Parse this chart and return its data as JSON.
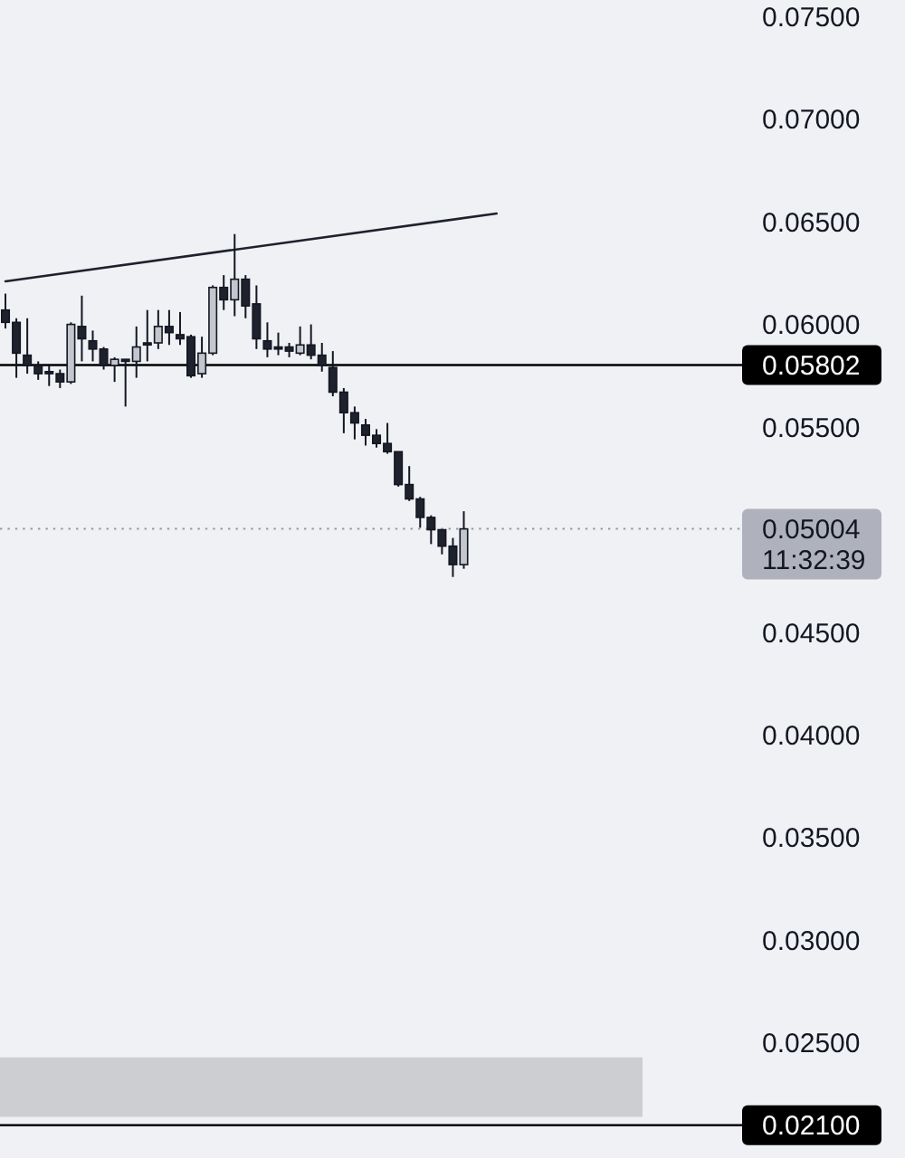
{
  "chart_data": {
    "type": "candlestick",
    "categories": [
      null,
      null,
      null,
      null,
      null,
      null,
      null,
      null,
      null,
      null,
      null,
      null,
      null,
      null,
      null,
      null,
      null,
      null,
      null,
      null,
      null,
      null,
      null,
      null,
      null,
      null,
      null,
      null,
      null,
      null,
      null,
      null,
      null,
      null,
      null,
      null,
      null,
      null,
      null,
      null,
      null,
      null,
      null,
      null,
      null,
      null,
      null,
      null,
      null,
      null,
      null,
      null,
      null,
      null,
      null,
      null,
      null,
      null,
      null,
      null,
      null,
      null,
      null,
      null,
      null,
      null,
      null,
      null
    ],
    "ohlc": [
      [
        0.0607,
        0.0615,
        0.0598,
        0.0601
      ],
      [
        0.0601,
        0.0603,
        0.0574,
        0.0586
      ],
      [
        0.0585,
        0.0603,
        0.0576,
        0.058
      ],
      [
        0.058,
        0.0582,
        0.0573,
        0.0576
      ],
      [
        0.0577,
        0.058,
        0.057,
        0.0576
      ],
      [
        0.0576,
        0.0578,
        0.0569,
        0.0572
      ],
      [
        0.0572,
        0.0601,
        0.0571,
        0.06
      ],
      [
        0.0599,
        0.0614,
        0.0582,
        0.0593
      ],
      [
        0.0592,
        0.0597,
        0.0582,
        0.0588
      ],
      [
        0.0588,
        0.0589,
        0.0578,
        0.058
      ],
      [
        0.058,
        0.0584,
        0.0572,
        0.0583
      ],
      [
        0.0583,
        0.0583,
        0.056,
        0.0582
      ],
      [
        0.0582,
        0.0599,
        0.0574,
        0.0589
      ],
      [
        0.0591,
        0.0607,
        0.0582,
        0.059
      ],
      [
        0.0591,
        0.0607,
        0.0588,
        0.0599
      ],
      [
        0.0599,
        0.0607,
        0.059,
        0.0596
      ],
      [
        0.0595,
        0.0606,
        0.059,
        0.0593
      ],
      [
        0.0594,
        0.0595,
        0.0574,
        0.0575
      ],
      [
        0.0576,
        0.0594,
        0.0574,
        0.0586
      ],
      [
        0.0586,
        0.0619,
        0.0585,
        0.0618
      ],
      [
        0.0618,
        0.0624,
        0.0607,
        0.0612
      ],
      [
        0.0612,
        0.0644,
        0.0604,
        0.0622
      ],
      [
        0.0622,
        0.0624,
        0.0603,
        0.0609
      ],
      [
        0.061,
        0.0619,
        0.0588,
        0.0593
      ],
      [
        0.0592,
        0.0601,
        0.0584,
        0.0588
      ],
      [
        0.0589,
        0.0596,
        0.0585,
        0.0588
      ],
      [
        0.0589,
        0.0591,
        0.0584,
        0.0587
      ],
      [
        0.0586,
        0.0599,
        0.0585,
        0.059
      ],
      [
        0.059,
        0.06,
        0.0583,
        0.0585
      ],
      [
        0.0585,
        0.0591,
        0.0577,
        0.058
      ],
      [
        0.0579,
        0.0587,
        0.0565,
        0.0567
      ],
      [
        0.0567,
        0.0569,
        0.0547,
        0.0557
      ],
      [
        0.0557,
        0.056,
        0.0544,
        0.0552
      ],
      [
        0.0551,
        0.0554,
        0.0541,
        0.0546
      ],
      [
        0.0546,
        0.0549,
        0.054,
        0.0542
      ],
      [
        0.0542,
        0.0552,
        0.0537,
        0.0538
      ],
      [
        0.0538,
        0.0538,
        0.0521,
        0.0522
      ],
      [
        0.0522,
        0.0531,
        0.0514,
        0.0515
      ],
      [
        0.0515,
        0.0516,
        0.0501,
        0.0506
      ],
      [
        0.0506,
        0.0507,
        0.0493,
        0.05
      ],
      [
        0.05,
        0.05,
        0.0488,
        0.0492
      ],
      [
        0.0492,
        0.0496,
        0.0477,
        0.0483
      ],
      [
        0.0483,
        0.0509,
        0.0481,
        0.05004
      ],
      null,
      null,
      null,
      null,
      null,
      null,
      null,
      null,
      null,
      null,
      null,
      null,
      null,
      null,
      null,
      null,
      null,
      null,
      null,
      null,
      null,
      null,
      null,
      null,
      null
    ],
    "colors": [
      "#1e222d",
      "#1e222d",
      "#1e222d",
      "#1e222d",
      "#1e222d",
      "#1e222d",
      "#c3c6cd",
      "#1e222d",
      "#1e222d",
      "#1e222d",
      "#c3c6cd",
      "#1e222d",
      "#c3c6cd",
      "#1e222d",
      "#c3c6cd",
      "#1e222d",
      "#1e222d",
      "#1e222d",
      "#c3c6cd",
      "#c3c6cd",
      "#1e222d",
      "#c3c6cd",
      "#1e222d",
      "#1e222d",
      "#1e222d",
      "#1e222d",
      "#1e222d",
      "#c3c6cd",
      "#1e222d",
      "#1e222d",
      "#1e222d",
      "#1e222d",
      "#1e222d",
      "#1e222d",
      "#1e222d",
      "#1e222d",
      "#1e222d",
      "#1e222d",
      "#1e222d",
      "#1e222d",
      "#1e222d",
      "#1e222d",
      "#c3c6cd",
      null,
      null,
      null,
      null,
      null,
      null,
      null,
      null,
      null,
      null,
      null,
      null,
      null,
      null,
      null,
      null,
      null,
      null,
      null,
      null,
      null,
      null,
      null,
      null,
      null
    ],
    "series": [
      {
        "type": "line",
        "color": "#1e222d",
        "values": [
          0.0621,
          null,
          null,
          null,
          null,
          null,
          null,
          null,
          null,
          null,
          null,
          null,
          null,
          null,
          null,
          null,
          null,
          null,
          null,
          null,
          null,
          null,
          null,
          null,
          null,
          null,
          null,
          null,
          null,
          null,
          null,
          null,
          null,
          null,
          null,
          null,
          null,
          null,
          null,
          null,
          null,
          null,
          null,
          null,
          null,
          0.0654,
          null,
          null,
          null,
          null,
          null,
          null,
          null,
          null,
          null,
          null,
          null,
          null,
          null,
          null,
          null,
          null,
          null,
          null,
          null,
          null,
          null,
          null
        ]
      }
    ],
    "ylim": [
      0.0194,
      0.0758
    ],
    "yticks": [
      {
        "value": 0.025,
        "label": "0.02500"
      },
      {
        "value": 0.03,
        "label": "0.03000"
      },
      {
        "value": 0.035,
        "label": "0.03500"
      },
      {
        "value": 0.04,
        "label": "0.04000"
      },
      {
        "value": 0.045,
        "label": "0.04500"
      },
      {
        "value": 0.055,
        "label": "0.05500"
      },
      {
        "value": 0.06,
        "label": "0.06000"
      },
      {
        "value": 0.065,
        "label": "0.06500"
      },
      {
        "value": 0.07,
        "label": "0.07000"
      },
      {
        "value": 0.075,
        "label": "0.07500"
      }
    ],
    "tick_labels": "y",
    "ref_lines": [
      {
        "axis": "y",
        "value": 0.05802,
        "label": "0.05802",
        "color": "#000000",
        "line_style": "solid"
      },
      {
        "axis": "y",
        "value": 0.05004,
        "label": "0.05004",
        "color": "#9598a1",
        "line_style": "dotted"
      },
      {
        "axis": "y",
        "value": 0.021,
        "label": "0.02100",
        "color": "#000000",
        "line_style": "solid"
      }
    ],
    "bands": [
      {
        "axis": "y",
        "from": 0.0214,
        "to": 0.0243,
        "color": "#cdced2"
      }
    ],
    "annotations": [
      "11:32:39"
    ]
  }
}
